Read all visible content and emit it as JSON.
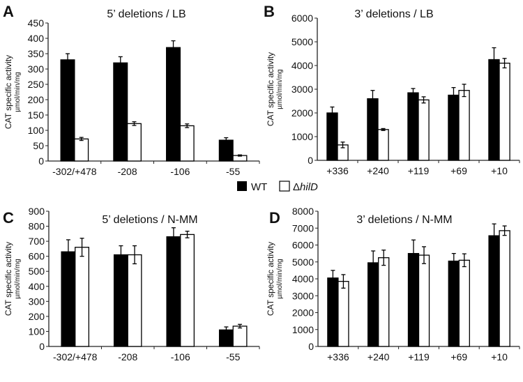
{
  "legend": {
    "wt": "WT",
    "delta": "Δ",
    "hild": "hilD"
  },
  "colors": {
    "wt": "#000000",
    "mutant": "#ffffff",
    "axis": "#222222"
  },
  "chart_data": [
    {
      "panel": "A",
      "type": "bar",
      "title": "5’ deletions / LB",
      "ylabel": "CAT specific activity",
      "ylabel2": "µmol/min/mg",
      "ylim": [
        0,
        450
      ],
      "ystep": 50,
      "categories": [
        "-302/+478",
        "-208",
        "-106",
        "-55"
      ],
      "series": [
        {
          "name": "WT",
          "values": [
            330,
            320,
            370,
            68
          ],
          "errors": [
            20,
            20,
            22,
            8
          ]
        },
        {
          "name": "ΔhilD",
          "values": [
            72,
            122,
            115,
            18
          ],
          "errors": [
            5,
            6,
            6,
            2
          ]
        }
      ]
    },
    {
      "panel": "B",
      "type": "bar",
      "title": "3’ deletions / LB",
      "ylabel": "CAT specific activity",
      "ylabel2": "µmol/min/mg",
      "ylim": [
        0,
        6000
      ],
      "ystep": 1000,
      "categories": [
        "+336",
        "+240",
        "+119",
        "+69",
        "+10"
      ],
      "series": [
        {
          "name": "WT",
          "values": [
            2000,
            2600,
            2850,
            2750,
            4250
          ],
          "errors": [
            250,
            350,
            180,
            320,
            500
          ]
        },
        {
          "name": "ΔhilD",
          "values": [
            650,
            1300,
            2550,
            2950,
            4100
          ],
          "errors": [
            120,
            40,
            130,
            260,
            200
          ]
        }
      ]
    },
    {
      "panel": "C",
      "type": "bar",
      "title": "5’ deletions / N-MM",
      "ylabel": "CAT specific activity",
      "ylabel2": "µmol/min/mg",
      "ylim": [
        0,
        900
      ],
      "ystep": 100,
      "categories": [
        "-302/+478",
        "-208",
        "-106",
        "-55"
      ],
      "series": [
        {
          "name": "WT",
          "values": [
            630,
            610,
            730,
            110
          ],
          "errors": [
            80,
            60,
            60,
            20
          ]
        },
        {
          "name": "ΔhilD",
          "values": [
            660,
            610,
            745,
            135
          ],
          "errors": [
            60,
            60,
            22,
            12
          ]
        }
      ]
    },
    {
      "panel": "D",
      "type": "bar",
      "title": "3’ deletions / N-MM",
      "ylabel": "CAT specific activity",
      "ylabel2": "µmol/min/mg",
      "ylim": [
        0,
        8000
      ],
      "ystep": 1000,
      "categories": [
        "+336",
        "+240",
        "+119",
        "+69",
        "+10"
      ],
      "series": [
        {
          "name": "WT",
          "values": [
            4050,
            4950,
            5500,
            5050,
            6550
          ],
          "errors": [
            450,
            700,
            800,
            450,
            700
          ]
        },
        {
          "name": "ΔhilD",
          "values": [
            3850,
            5250,
            5400,
            5100,
            6850
          ],
          "errors": [
            400,
            450,
            500,
            380,
            280
          ]
        }
      ]
    }
  ]
}
